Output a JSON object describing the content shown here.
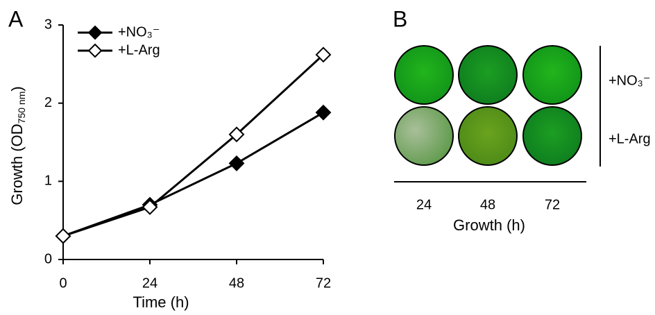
{
  "chart_data": {
    "type": "line",
    "panel_label": "A",
    "x": [
      0,
      24,
      48,
      72
    ],
    "series": [
      {
        "name": "+NO₃⁻",
        "color": "#000000",
        "fill": "#000000",
        "values": [
          0.3,
          0.7,
          1.23,
          1.88
        ]
      },
      {
        "name": "+L-Arg",
        "color": "#000000",
        "fill": "#ffffff",
        "values": [
          0.3,
          0.67,
          1.6,
          2.62
        ]
      }
    ],
    "x_label": "Time (h)",
    "y_label": [
      "Growth (OD",
      "750 nm",
      ")"
    ],
    "xlim": [
      0,
      72
    ],
    "xticks": [
      0,
      24,
      48,
      72
    ],
    "ylim": [
      0,
      3
    ],
    "yticks": [
      0,
      1,
      2,
      3
    ],
    "legend": "top-left"
  },
  "panel_b": {
    "label": "B",
    "rows": [
      "+NO₃⁻",
      "+L-Arg"
    ],
    "columns": [
      "24",
      "48",
      "72"
    ],
    "x_label": "Growth (h)"
  }
}
